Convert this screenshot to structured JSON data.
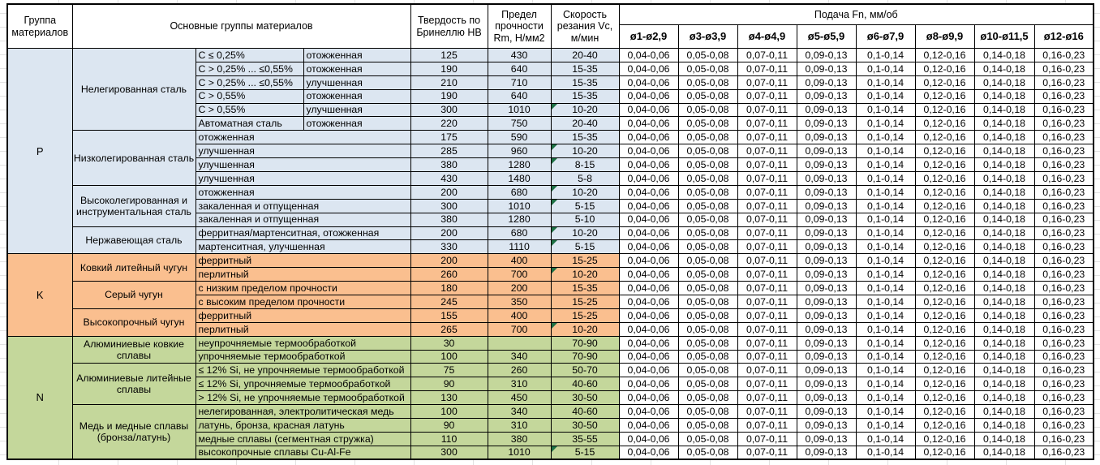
{
  "header": {
    "group": "Группа материалов",
    "main": "Основные группы материалов",
    "hardness": "Твердость по Бринеллю HB",
    "strength": "Предел прочности Rm, Н/мм2",
    "speed": "Скорость резания Vc, м/мин",
    "feed": "Подача Fn, мм/об",
    "feed_columns": [
      "ø1-ø2,9",
      "ø3-ø3,9",
      "ø4-ø4,9",
      "ø5-ø5,9",
      "ø6-ø7,9",
      "ø8-ø9,9",
      "ø10-ø11,5",
      "ø12-ø16"
    ]
  },
  "feed_values": [
    "0,04-0,06",
    "0,05-0,08",
    "0,07-0,11",
    "0,09-0,13",
    "0,1-0,14",
    "0,12-0,16",
    "0,14-0,18",
    "0,16-0,23"
  ],
  "colors": {
    "P": "#dce6f1",
    "K": "#fabf8f",
    "N": "#c4d79b",
    "marker": "#1e7145"
  },
  "groups": [
    {
      "code": "P",
      "families": [
        {
          "name": "Нелегированная сталь",
          "rows": [
            {
              "cells": [
                "С ≤ 0,25%",
                "отожженная"
              ],
              "hb": "125",
              "rm": "430",
              "vc": "20-40",
              "marker": false
            },
            {
              "cells": [
                "С > 0,25% ... ≤0,55%",
                "отожженная"
              ],
              "hb": "190",
              "rm": "640",
              "vc": "15-35",
              "marker": false
            },
            {
              "cells": [
                "С > 0,25% ... ≤0,55%",
                "улучшенная"
              ],
              "hb": "210",
              "rm": "710",
              "vc": "15-35",
              "marker": false
            },
            {
              "cells": [
                "С > 0,55%",
                "отожженная"
              ],
              "hb": "190",
              "rm": "640",
              "vc": "15-35",
              "marker": false
            },
            {
              "cells": [
                "С > 0,55%",
                "улучшенная"
              ],
              "hb": "300",
              "rm": "1010",
              "vc": "10-20",
              "marker": true
            },
            {
              "cells": [
                "Автоматная сталь",
                "отожженная"
              ],
              "hb": "220",
              "rm": "750",
              "vc": "20-40",
              "marker": false
            }
          ]
        },
        {
          "name": "Низколегированная сталь",
          "rows": [
            {
              "cells": [
                "отожженная"
              ],
              "hb": "175",
              "rm": "590",
              "vc": "15-35",
              "marker": false
            },
            {
              "cells": [
                "улучшенная"
              ],
              "hb": "285",
              "rm": "960",
              "vc": "10-20",
              "marker": true
            },
            {
              "cells": [
                "улучшенная"
              ],
              "hb": "380",
              "rm": "1280",
              "vc": "8-15",
              "marker": true
            },
            {
              "cells": [
                "улучшенная"
              ],
              "hb": "430",
              "rm": "1480",
              "vc": "5-8",
              "marker": false
            }
          ]
        },
        {
          "name": "Высоколегированная и инструментальная сталь",
          "rows": [
            {
              "cells": [
                "отожженная"
              ],
              "hb": "200",
              "rm": "680",
              "vc": "10-20",
              "marker": true
            },
            {
              "cells": [
                "закаленная и отпущенная"
              ],
              "hb": "300",
              "rm": "1010",
              "vc": "5-15",
              "marker": true
            },
            {
              "cells": [
                "закаленная и отпущенная"
              ],
              "hb": "380",
              "rm": "1280",
              "vc": "5-10",
              "marker": false
            }
          ]
        },
        {
          "name": "Нержавеющая сталь",
          "rows": [
            {
              "cells": [
                "ферритная/мартенситная, отожженная"
              ],
              "hb": "200",
              "rm": "680",
              "vc": "10-20",
              "marker": true
            },
            {
              "cells": [
                "мартенситная, улучшенная"
              ],
              "hb": "330",
              "rm": "1110",
              "vc": "5-15",
              "marker": true
            }
          ]
        }
      ]
    },
    {
      "code": "K",
      "families": [
        {
          "name": "Ковкий литейный чугун",
          "rows": [
            {
              "cells": [
                "ферритный"
              ],
              "hb": "200",
              "rm": "400",
              "vc": "15-25",
              "marker": false
            },
            {
              "cells": [
                "перлитный"
              ],
              "hb": "260",
              "rm": "700",
              "vc": "10-20",
              "marker": true
            }
          ]
        },
        {
          "name": "Серый чугун",
          "rows": [
            {
              "cells": [
                "с низким пределом прочности"
              ],
              "hb": "180",
              "rm": "200",
              "vc": "15-35",
              "marker": false
            },
            {
              "cells": [
                "с высоким пределом прочности"
              ],
              "hb": "245",
              "rm": "350",
              "vc": "15-25",
              "marker": false
            }
          ]
        },
        {
          "name": "Высокопрочный чугун",
          "rows": [
            {
              "cells": [
                "ферритный"
              ],
              "hb": "155",
              "rm": "400",
              "vc": "15-25",
              "marker": false
            },
            {
              "cells": [
                "перлитный"
              ],
              "hb": "265",
              "rm": "700",
              "vc": "10-20",
              "marker": true
            }
          ]
        }
      ]
    },
    {
      "code": "N",
      "families": [
        {
          "name": "Алюминиевые ковкие сплавы",
          "rows": [
            {
              "cells": [
                "неупрочняемые термообработкой"
              ],
              "hb": "30",
              "rm": "",
              "vc": "70-90",
              "marker": false
            },
            {
              "cells": [
                "упрочняемые термообработкой"
              ],
              "hb": "100",
              "rm": "340",
              "vc": "70-90",
              "marker": false
            }
          ]
        },
        {
          "name": "Алюминиевые литейные сплавы",
          "rows": [
            {
              "cells": [
                "≤ 12% Si, не упрочняемые термообработкой"
              ],
              "hb": "75",
              "rm": "260",
              "vc": "50-70",
              "marker": false
            },
            {
              "cells": [
                "≤ 12% Si, упрочняемые термообработкой"
              ],
              "hb": "90",
              "rm": "310",
              "vc": "40-60",
              "marker": false
            },
            {
              "cells": [
                "> 12% Si, не упрочняемые термообработкой"
              ],
              "hb": "130",
              "rm": "450",
              "vc": "30-50",
              "marker": false
            }
          ]
        },
        {
          "name": "Медь и медные сплавы (бронза/латунь)",
          "rows": [
            {
              "cells": [
                "нелегированная, электролитическая медь"
              ],
              "hb": "100",
              "rm": "340",
              "vc": "40-60",
              "marker": false
            },
            {
              "cells": [
                "латунь, бронза, красная латунь"
              ],
              "hb": "90",
              "rm": "310",
              "vc": "30-50",
              "marker": false
            },
            {
              "cells": [
                "медные сплавы (сегментная стружка)"
              ],
              "hb": "110",
              "rm": "380",
              "vc": "35-55",
              "marker": false
            },
            {
              "cells": [
                "высокопрочные сплавы Cu-Al-Fe"
              ],
              "hb": "300",
              "rm": "1010",
              "vc": "5-15",
              "marker": true
            }
          ]
        }
      ]
    }
  ]
}
